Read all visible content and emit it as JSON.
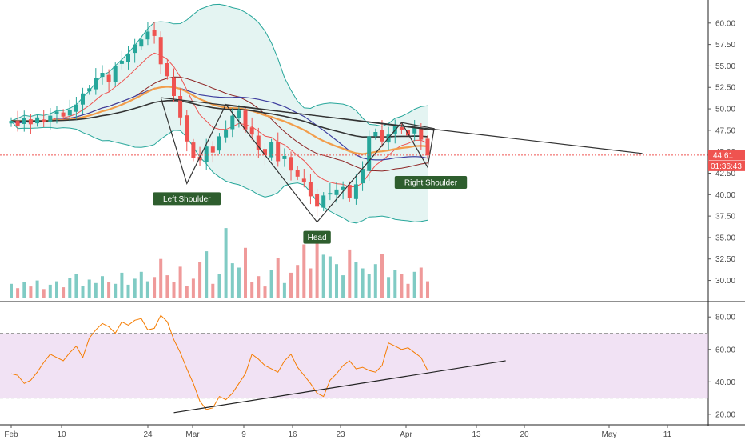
{
  "chart_data": {
    "type": "candlestick",
    "price_axis": {
      "ticks": [
        "60.00",
        "57.50",
        "55.00",
        "52.50",
        "50.00",
        "47.50",
        "45.00",
        "42.50",
        "40.00",
        "37.50",
        "35.00",
        "32.50",
        "30.00"
      ],
      "range": [
        28.0,
        62.5
      ]
    },
    "rsi_axis": {
      "ticks": [
        "80.00",
        "60.00",
        "40.00",
        "20.00"
      ],
      "range": [
        15,
        88
      ],
      "band": [
        30,
        70
      ]
    },
    "x_axis": {
      "labels": [
        "Feb",
        "10",
        "24",
        "Mar",
        "9",
        "16",
        "23",
        "Apr",
        "13",
        "20",
        "May",
        "11"
      ]
    },
    "last_price": {
      "label": "44.61",
      "value": 44.61,
      "color": "#ef5350"
    },
    "countdown": {
      "label": "01:36:43"
    },
    "patterns": [
      {
        "label": "Left Shoulder",
        "point": {
          "day": 27,
          "price": 41.3
        }
      },
      {
        "label": "Head",
        "point": {
          "day": 47,
          "price": 36.8
        }
      },
      {
        "label": "Right Shoulder",
        "point": {
          "day": 64,
          "price": 43.2
        }
      }
    ],
    "ohlc_closes": [
      48.6,
      48.0,
      48.9,
      48.2,
      49.0,
      48.5,
      49.2,
      49.7,
      49.1,
      49.9,
      50.5,
      51.8,
      52.4,
      53.6,
      54.2,
      53.1,
      55.0,
      55.6,
      56.4,
      57.5,
      58.1,
      59.0,
      58.5,
      55.2,
      53.8,
      51.5,
      49.0,
      46.2,
      44.3,
      44.0,
      45.6,
      44.9,
      46.8,
      47.5,
      49.2,
      49.8,
      47.6,
      47.0,
      45.2,
      44.6,
      46.1,
      43.9,
      44.5,
      42.8,
      42.1,
      41.5,
      39.8,
      38.6,
      39.9,
      40.2,
      40.6,
      40.9,
      39.6,
      41.2,
      43.0,
      46.8,
      47.3,
      46.2,
      47.0,
      48.1,
      47.5,
      46.9,
      47.8,
      46.4,
      44.6
    ],
    "volume": [
      29.6,
      29.1,
      29.8,
      29.3,
      30.0,
      29.0,
      29.5,
      29.9,
      29.2,
      30.3,
      30.8,
      29.4,
      30.1,
      29.7,
      30.5,
      29.8,
      29.6,
      30.9,
      29.5,
      30.2,
      31.0,
      29.9,
      30.4,
      32.5,
      30.6,
      29.8,
      31.6,
      29.4,
      30.2,
      32.1,
      33.4,
      29.6,
      30.8,
      36.1,
      32.0,
      31.5,
      33.8,
      29.8,
      30.5,
      29.3,
      31.2,
      32.6,
      29.7,
      30.9,
      31.8,
      34.2,
      31.4,
      34.4,
      33.0,
      32.8,
      31.9,
      30.6,
      33.6,
      32.1,
      31.4,
      30.8,
      31.9,
      33.1,
      30.4,
      31.2,
      30.8,
      29.6,
      31.0,
      31.5,
      29.9
    ],
    "rsi": [
      45,
      44,
      39,
      41,
      46,
      52,
      57,
      55,
      53,
      58,
      62,
      55,
      67,
      72,
      76,
      74,
      70,
      77,
      75,
      78,
      79,
      72,
      73,
      81,
      77,
      66,
      58,
      48,
      39,
      28,
      23,
      24,
      31,
      29,
      33,
      39,
      45,
      57,
      54,
      50,
      48,
      46,
      53,
      57,
      49,
      44,
      39,
      33,
      31,
      41,
      45,
      50,
      53,
      48,
      49,
      47,
      46,
      50,
      64,
      62,
      60,
      61,
      58,
      55,
      47
    ]
  }
}
